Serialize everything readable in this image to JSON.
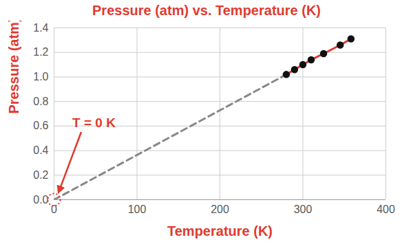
{
  "chart_data": {
    "type": "line",
    "title": "Pressure (atm) vs. Temperature (K)",
    "x_label": "Temperature (K)",
    "y_label": "Pressure (atm)",
    "x": [
      280,
      290,
      300,
      310,
      325,
      345,
      358
    ],
    "values": [
      1.02,
      1.06,
      1.1,
      1.14,
      1.19,
      1.26,
      1.31
    ],
    "color": "#e03a2f",
    "marker": "circle",
    "extrapolation": {
      "x": [
        0,
        280
      ],
      "values": [
        0,
        1.02
      ],
      "color": "#888888",
      "line_style": "dashed"
    },
    "annotations": [
      {
        "text": "T = 0 K",
        "x": 0,
        "y": 0
      }
    ],
    "xlim": [
      0,
      400
    ],
    "xticks": [
      0,
      100,
      200,
      300,
      400
    ],
    "ylim": [
      0,
      1.4
    ],
    "yticks": [
      {
        "value": 0,
        "label": "0.0"
      },
      {
        "value": 0.2,
        "label": "0.2"
      },
      {
        "value": 0.4,
        "label": "0.4"
      },
      {
        "value": 0.6,
        "label": "0.6"
      },
      {
        "value": 0.8,
        "label": "0.8"
      },
      {
        "value": 1.0,
        "label": "1.0"
      },
      {
        "value": 1.2,
        "label": "1.2"
      },
      {
        "value": 1.4,
        "label": "1.4"
      }
    ],
    "grid": true
  }
}
